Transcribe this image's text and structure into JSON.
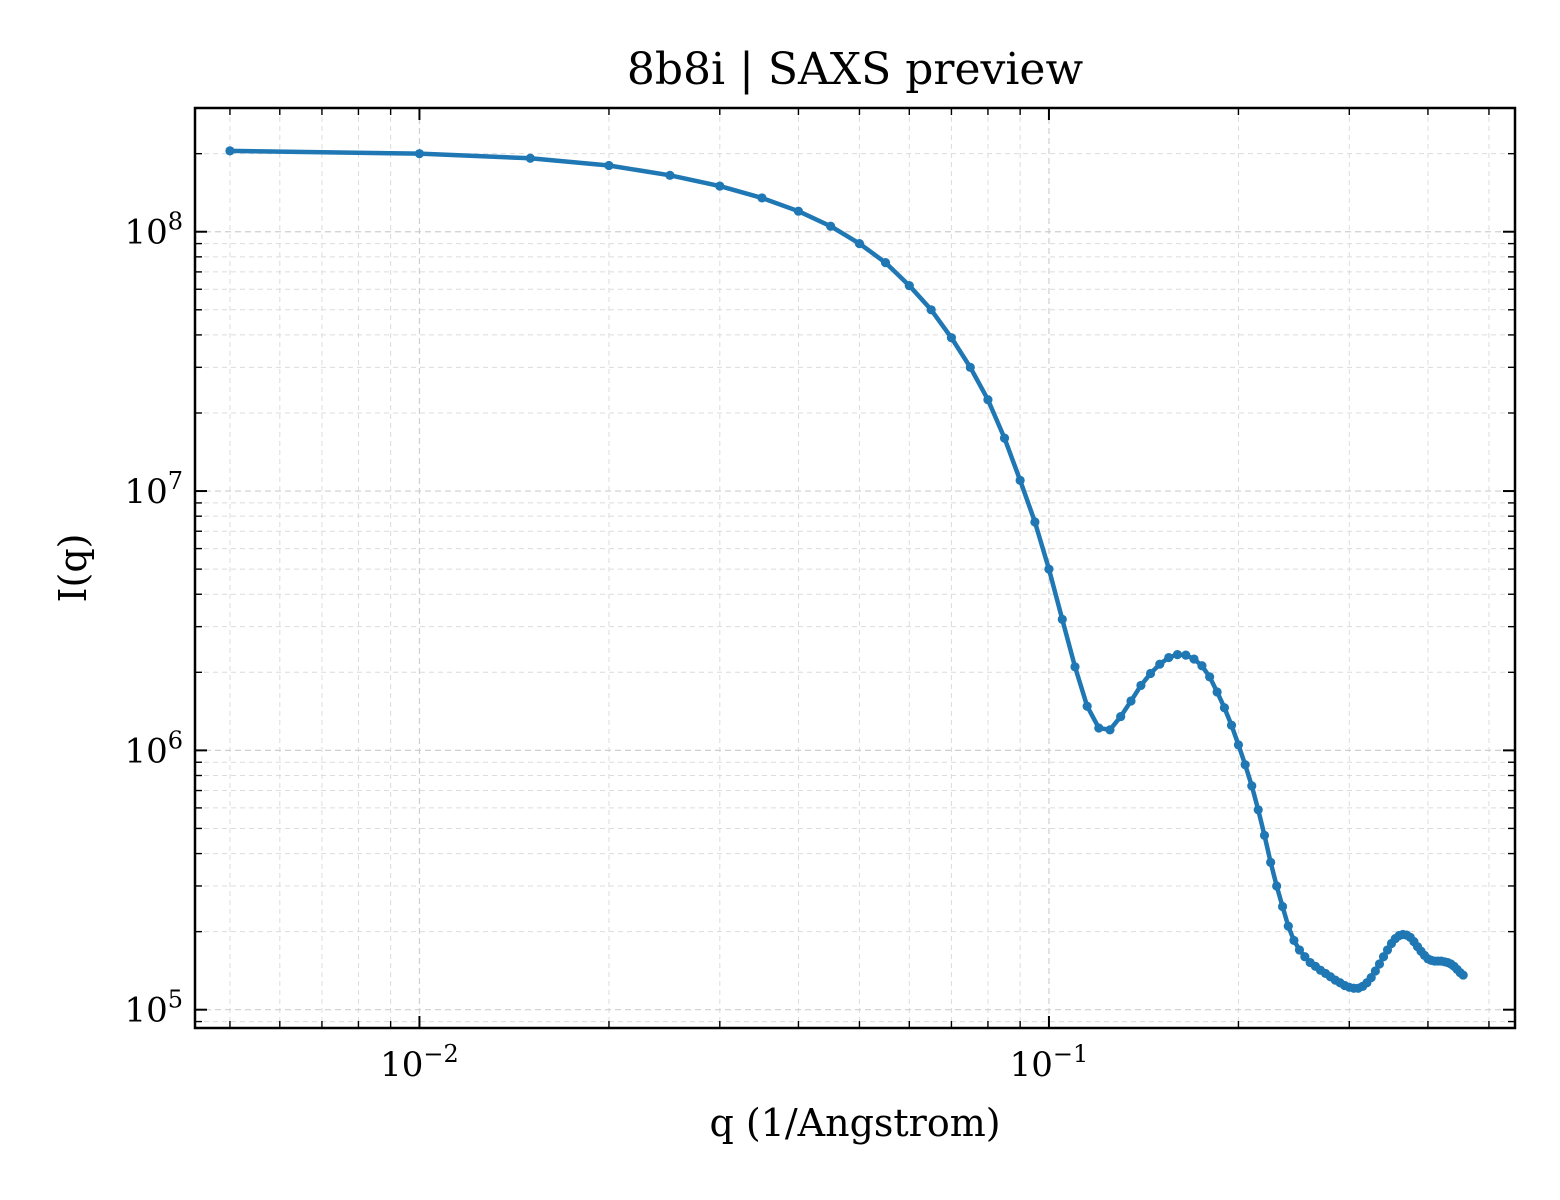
{
  "chart_data": {
    "type": "line",
    "title": "8b8i | SAXS preview",
    "xlabel": "q (1/Angstrom)",
    "ylabel": "I(q)",
    "xscale": "log",
    "yscale": "log",
    "xlim": [
      0.0044,
      0.55
    ],
    "ylim": [
      85000,
      300000000
    ],
    "grid": true,
    "x_ticks": [
      {
        "value": 0.01,
        "base": "10",
        "exp": "−2"
      },
      {
        "value": 0.1,
        "base": "10",
        "exp": "−1"
      }
    ],
    "y_ticks": [
      {
        "value": 100000,
        "base": "10",
        "exp": "5"
      },
      {
        "value": 1000000,
        "base": "10",
        "exp": "6"
      },
      {
        "value": 10000000,
        "base": "10",
        "exp": "7"
      },
      {
        "value": 100000000,
        "base": "10",
        "exp": "8"
      }
    ],
    "series": [
      {
        "color": "#1f77b4",
        "marker": "circle",
        "points": [
          [
            0.005,
            205000000.0
          ],
          [
            0.01,
            200000000.0
          ],
          [
            0.015,
            192000000.0
          ],
          [
            0.02,
            180000000.0
          ],
          [
            0.025,
            165000000.0
          ],
          [
            0.03,
            150000000.0
          ],
          [
            0.035,
            135000000.0
          ],
          [
            0.04,
            120000000.0
          ],
          [
            0.045,
            105000000.0
          ],
          [
            0.05,
            90000000.0
          ],
          [
            0.055,
            76000000.0
          ],
          [
            0.06,
            62000000.0
          ],
          [
            0.065,
            50000000.0
          ],
          [
            0.07,
            39000000.0
          ],
          [
            0.075,
            30000000.0
          ],
          [
            0.08,
            22500000.0
          ],
          [
            0.085,
            16000000.0
          ],
          [
            0.09,
            11000000.0
          ],
          [
            0.095,
            7600000.0
          ],
          [
            0.1,
            5000000.0
          ],
          [
            0.105,
            3200000.0
          ],
          [
            0.11,
            2100000.0
          ],
          [
            0.115,
            1480000.0
          ],
          [
            0.12,
            1220000.0
          ],
          [
            0.125,
            1200000.0
          ],
          [
            0.13,
            1350000.0
          ],
          [
            0.135,
            1550000.0
          ],
          [
            0.14,
            1780000.0
          ],
          [
            0.145,
            1980000.0
          ],
          [
            0.15,
            2150000.0
          ],
          [
            0.155,
            2280000.0
          ],
          [
            0.16,
            2340000.0
          ],
          [
            0.165,
            2330000.0
          ],
          [
            0.17,
            2250000.0
          ],
          [
            0.175,
            2120000.0
          ],
          [
            0.18,
            1920000.0
          ],
          [
            0.185,
            1680000.0
          ],
          [
            0.19,
            1460000.0
          ],
          [
            0.195,
            1250000.0
          ],
          [
            0.2,
            1050000.0
          ],
          [
            0.205,
            880000.0
          ],
          [
            0.21,
            730000.0
          ],
          [
            0.215,
            590000.0
          ],
          [
            0.22,
            470000.0
          ],
          [
            0.225,
            370000.0
          ],
          [
            0.23,
            300000.0
          ],
          [
            0.235,
            250000.0
          ],
          [
            0.24,
            210000.0
          ],
          [
            0.245,
            185000.0
          ],
          [
            0.25,
            170000.0
          ],
          [
            0.255,
            160000.0
          ],
          [
            0.26,
            152000.0
          ],
          [
            0.265,
            147000.0
          ],
          [
            0.27,
            142000.0
          ],
          [
            0.275,
            138000.0
          ],
          [
            0.28,
            134000.0
          ],
          [
            0.285,
            130000.0
          ],
          [
            0.29,
            127000.0
          ],
          [
            0.295,
            124000.0
          ],
          [
            0.3,
            122000.0
          ],
          [
            0.305,
            121000.0
          ],
          [
            0.31,
            121000.0
          ],
          [
            0.315,
            123000.0
          ],
          [
            0.32,
            127000.0
          ],
          [
            0.325,
            133000.0
          ],
          [
            0.33,
            141000.0
          ],
          [
            0.335,
            150000.0
          ],
          [
            0.34,
            160000.0
          ],
          [
            0.345,
            170000.0
          ],
          [
            0.35,
            180000.0
          ],
          [
            0.355,
            188000.0
          ],
          [
            0.36,
            193000.0
          ],
          [
            0.365,
            195000.0
          ],
          [
            0.37,
            194000.0
          ],
          [
            0.375,
            190000.0
          ],
          [
            0.38,
            183000.0
          ],
          [
            0.385,
            175000.0
          ],
          [
            0.39,
            168000.0
          ],
          [
            0.395,
            162000.0
          ],
          [
            0.4,
            157000.0
          ],
          [
            0.405,
            155000.0
          ],
          [
            0.41,
            154000.0
          ],
          [
            0.415,
            154000.0
          ],
          [
            0.42,
            154000.0
          ],
          [
            0.425,
            153000.0
          ],
          [
            0.43,
            152000.0
          ],
          [
            0.435,
            150000.0
          ],
          [
            0.44,
            147000.0
          ],
          [
            0.445,
            143000.0
          ],
          [
            0.45,
            139000.0
          ],
          [
            0.455,
            136000.0
          ]
        ]
      }
    ]
  }
}
